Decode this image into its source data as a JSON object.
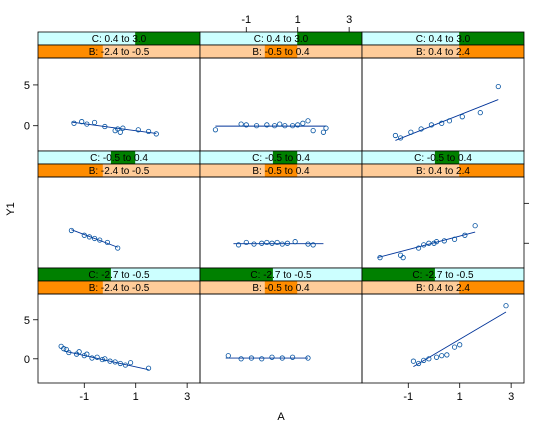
{
  "chart_data": {
    "type": "scatter",
    "title": "",
    "xlabel": "A",
    "ylabel": "Y1",
    "xlim": [
      -2.8,
      3.5
    ],
    "ylim": [
      -3.1,
      8.3
    ],
    "xticks": [
      -1,
      1,
      3
    ],
    "yticks": [
      0,
      5
    ],
    "strip_colors": {
      "C_bg": "#ccffff",
      "C_fg": "#008000",
      "B_bg": "#ffcc99",
      "B_fg": "#ff8c00"
    },
    "panels": [
      {
        "C": "C: 0.4 to 3.0",
        "B": "B: -2.4 to -0.5",
        "c_range": [
          0.6,
          1.0
        ],
        "b_range": [
          0.0,
          0.4
        ],
        "x": [
          -1.4,
          -1.1,
          -0.9,
          -0.6,
          -0.2,
          0.2,
          0.3,
          0.4,
          0.5,
          1.1,
          1.5,
          1.8
        ],
        "y": [
          0.3,
          0.5,
          0.2,
          0.4,
          -0.1,
          -0.6,
          -0.4,
          -0.8,
          -0.3,
          -0.5,
          -0.7,
          -1.0
        ],
        "fit": [
          [
            -1.5,
            0.45
          ],
          [
            1.8,
            -0.95
          ]
        ]
      },
      {
        "C": "C: 0.4 to 3.0",
        "B": "B: -0.5 to 0.4",
        "c_range": [
          0.6,
          1.0
        ],
        "b_range": [
          0.4,
          0.6
        ],
        "x": [
          -2.2,
          -1.2,
          -1.0,
          -0.6,
          -0.2,
          0.1,
          0.3,
          0.5,
          0.8,
          1.0,
          1.2,
          1.4,
          1.6,
          2.0,
          2.1
        ],
        "y": [
          -0.5,
          0.2,
          0.1,
          0.0,
          0.1,
          0.0,
          0.2,
          0.0,
          0.0,
          0.1,
          0.3,
          0.6,
          -0.6,
          -0.8,
          -0.3
        ],
        "fit": [
          [
            -2.2,
            -0.05
          ],
          [
            2.1,
            -0.05
          ]
        ]
      },
      {
        "C": "C: 0.4 to 3.0",
        "B": "B: 0.4 to 2.4",
        "c_range": [
          0.6,
          1.0
        ],
        "b_range": [
          0.6,
          1.0
        ],
        "x": [
          -1.5,
          -1.3,
          -0.9,
          -0.5,
          -0.1,
          0.3,
          0.6,
          1.1,
          1.8,
          2.5
        ],
        "y": [
          -1.2,
          -1.5,
          -0.8,
          -0.4,
          0.1,
          0.3,
          0.6,
          1.1,
          1.6,
          4.8
        ],
        "fit": [
          [
            -1.5,
            -1.8
          ],
          [
            2.5,
            3.2
          ]
        ]
      },
      {
        "C": "C: -0.5 to 0.4",
        "B": "B: -2.4 to -0.5",
        "c_range": [
          0.45,
          0.6
        ],
        "b_range": [
          0.0,
          0.4
        ],
        "x": [
          -1.5,
          -1.0,
          -0.8,
          -0.6,
          -0.4,
          -0.1,
          0.3
        ],
        "y": [
          1.6,
          1.0,
          0.8,
          0.6,
          0.4,
          0.1,
          -0.6
        ],
        "fit": [
          [
            -1.5,
            1.7
          ],
          [
            0.3,
            -0.5
          ]
        ]
      },
      {
        "C": "C: -0.5 to 0.4",
        "B": "B: -0.5 to 0.4",
        "c_range": [
          0.45,
          0.6
        ],
        "b_range": [
          0.4,
          0.6
        ],
        "x": [
          -1.3,
          -1.0,
          -0.7,
          -0.4,
          -0.2,
          0.0,
          0.2,
          0.4,
          0.6,
          0.9,
          1.4,
          1.6
        ],
        "y": [
          -0.2,
          0.1,
          -0.1,
          0.0,
          0.1,
          0.0,
          0.1,
          -0.1,
          0.0,
          0.2,
          -0.1,
          -0.2
        ],
        "fit": [
          [
            -1.5,
            -0.05
          ],
          [
            2.0,
            -0.05
          ]
        ]
      },
      {
        "C": "C: -0.5 to 0.4",
        "B": "B: 0.4 to 2.4",
        "c_range": [
          0.45,
          0.6
        ],
        "b_range": [
          0.6,
          1.0
        ],
        "x": [
          -2.1,
          -1.3,
          -1.2,
          -0.6,
          -0.4,
          -0.2,
          0.0,
          0.1,
          0.4,
          0.8,
          1.2,
          1.6
        ],
        "y": [
          -1.8,
          -1.5,
          -1.8,
          -0.6,
          -0.2,
          0.0,
          0.0,
          0.2,
          0.3,
          0.5,
          1.0,
          2.2
        ],
        "fit": [
          [
            -2.2,
            -1.8
          ],
          [
            1.6,
            1.4
          ]
        ]
      },
      {
        "C": "C: -2.7 to -0.5",
        "B": "B: -2.4 to -0.5",
        "c_range": [
          0.0,
          0.45
        ],
        "b_range": [
          0.0,
          0.4
        ],
        "x": [
          -1.9,
          -1.8,
          -1.7,
          -1.6,
          -1.3,
          -1.2,
          -1.0,
          -0.9,
          -0.7,
          -0.5,
          -0.3,
          -0.2,
          0.0,
          0.2,
          0.4,
          0.6,
          0.8,
          1.5
        ],
        "y": [
          1.6,
          1.3,
          1.2,
          0.8,
          0.6,
          0.9,
          0.4,
          0.6,
          0.1,
          0.2,
          -0.1,
          0.0,
          -0.3,
          -0.4,
          -0.6,
          -0.8,
          -0.5,
          -1.2
        ],
        "fit": [
          [
            -1.8,
            1.0
          ],
          [
            1.5,
            -1.4
          ]
        ]
      },
      {
        "C": "C: -2.7 to -0.5",
        "B": "B: -0.5 to 0.4",
        "c_range": [
          0.0,
          0.45
        ],
        "b_range": [
          0.4,
          0.6
        ],
        "x": [
          -1.7,
          -1.2,
          -0.8,
          -0.4,
          0.0,
          0.4,
          0.8,
          1.4
        ],
        "y": [
          0.4,
          0.0,
          0.1,
          0.0,
          0.2,
          0.1,
          0.2,
          0.1
        ],
        "fit": [
          [
            -1.8,
            0.1
          ],
          [
            1.4,
            0.1
          ]
        ]
      },
      {
        "C": "C: -2.7 to -0.5",
        "B": "B: 0.4 to 2.4",
        "c_range": [
          0.0,
          0.45
        ],
        "b_range": [
          0.6,
          1.0
        ],
        "x": [
          -0.8,
          -0.6,
          -0.4,
          -0.2,
          0.1,
          0.3,
          0.5,
          0.8,
          1.0,
          2.8
        ],
        "y": [
          -0.3,
          -0.6,
          -0.2,
          0.0,
          0.2,
          0.4,
          0.5,
          1.5,
          1.8,
          6.8
        ],
        "fit": [
          [
            -0.8,
            -1.0
          ],
          [
            2.8,
            6.0
          ]
        ]
      }
    ]
  }
}
